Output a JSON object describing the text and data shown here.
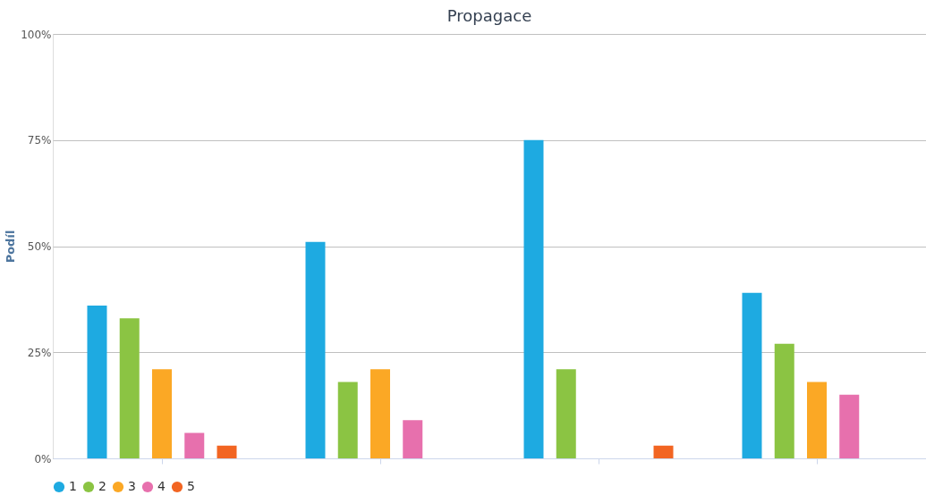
{
  "chart_data": {
    "type": "bar",
    "title": "Propagace",
    "ylabel": "Podíl",
    "categories": [
      null,
      null,
      null,
      null
    ],
    "series": [
      {
        "name": "1",
        "color": "#1eaae1",
        "values": [
          36,
          51,
          75,
          39
        ]
      },
      {
        "name": "2",
        "color": "#8bc443",
        "values": [
          33,
          18,
          21,
          27
        ]
      },
      {
        "name": "3",
        "color": "#fba825",
        "values": [
          21,
          21,
          null,
          18
        ]
      },
      {
        "name": "4",
        "color": "#e770ad",
        "values": [
          6,
          9,
          null,
          15
        ]
      },
      {
        "name": "5",
        "color": "#f26522",
        "values": [
          3,
          null,
          3,
          null
        ]
      }
    ],
    "ylim": [
      0,
      100
    ],
    "yticks": [
      {
        "value": 0,
        "label": "0%"
      },
      {
        "value": 25,
        "label": "25%"
      },
      {
        "value": 50,
        "label": "50%"
      },
      {
        "value": 75,
        "label": "75%"
      },
      {
        "value": 100,
        "label": "100%"
      }
    ],
    "grid": "y",
    "legend": "bottom left"
  }
}
